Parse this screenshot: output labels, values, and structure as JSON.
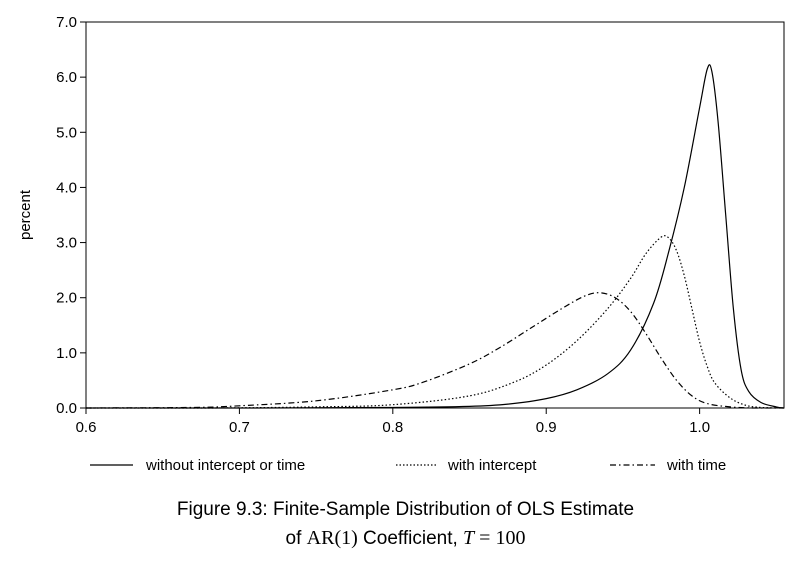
{
  "chart_data": {
    "type": "line",
    "ylabel": "percent",
    "xlim": [
      0.6,
      1.055
    ],
    "ylim": [
      0.0,
      7.0
    ],
    "x_ticks": [
      "0.6",
      "0.7",
      "0.8",
      "0.9",
      "1.0"
    ],
    "y_ticks": [
      "0.0",
      "1.0",
      "2.0",
      "3.0",
      "4.0",
      "5.0",
      "6.0",
      "7.0"
    ],
    "series": [
      {
        "name": "without intercept or time",
        "style": "solid",
        "points": [
          [
            0.6,
            0.0
          ],
          [
            0.7,
            0.0
          ],
          [
            0.8,
            0.01
          ],
          [
            0.85,
            0.03
          ],
          [
            0.875,
            0.07
          ],
          [
            0.9,
            0.17
          ],
          [
            0.92,
            0.33
          ],
          [
            0.94,
            0.62
          ],
          [
            0.955,
            1.05
          ],
          [
            0.97,
            1.9
          ],
          [
            0.98,
            2.85
          ],
          [
            0.99,
            4.0
          ],
          [
            1.0,
            5.45
          ],
          [
            1.005,
            6.15
          ],
          [
            1.008,
            6.1
          ],
          [
            1.012,
            5.2
          ],
          [
            1.017,
            3.5
          ],
          [
            1.022,
            1.8
          ],
          [
            1.027,
            0.7
          ],
          [
            1.032,
            0.3
          ],
          [
            1.04,
            0.1
          ],
          [
            1.05,
            0.02
          ],
          [
            1.055,
            0.0
          ]
        ]
      },
      {
        "name": "with intercept",
        "style": "dotted",
        "points": [
          [
            0.6,
            0.0
          ],
          [
            0.68,
            0.0
          ],
          [
            0.75,
            0.02
          ],
          [
            0.8,
            0.06
          ],
          [
            0.85,
            0.22
          ],
          [
            0.88,
            0.48
          ],
          [
            0.9,
            0.78
          ],
          [
            0.92,
            1.22
          ],
          [
            0.94,
            1.8
          ],
          [
            0.955,
            2.35
          ],
          [
            0.965,
            2.8
          ],
          [
            0.975,
            3.1
          ],
          [
            0.98,
            3.08
          ],
          [
            0.985,
            2.85
          ],
          [
            0.99,
            2.4
          ],
          [
            0.995,
            1.8
          ],
          [
            1.0,
            1.2
          ],
          [
            1.005,
            0.75
          ],
          [
            1.01,
            0.45
          ],
          [
            1.02,
            0.18
          ],
          [
            1.03,
            0.05
          ],
          [
            1.04,
            0.01
          ],
          [
            1.055,
            0.0
          ]
        ]
      },
      {
        "name": "with time",
        "style": "dashdot",
        "points": [
          [
            0.6,
            0.0
          ],
          [
            0.67,
            0.01
          ],
          [
            0.7,
            0.04
          ],
          [
            0.75,
            0.13
          ],
          [
            0.8,
            0.33
          ],
          [
            0.82,
            0.47
          ],
          [
            0.85,
            0.8
          ],
          [
            0.87,
            1.1
          ],
          [
            0.89,
            1.45
          ],
          [
            0.91,
            1.8
          ],
          [
            0.925,
            2.03
          ],
          [
            0.935,
            2.09
          ],
          [
            0.945,
            2.0
          ],
          [
            0.955,
            1.75
          ],
          [
            0.965,
            1.35
          ],
          [
            0.975,
            0.9
          ],
          [
            0.985,
            0.5
          ],
          [
            0.995,
            0.22
          ],
          [
            1.005,
            0.08
          ],
          [
            1.02,
            0.02
          ],
          [
            1.035,
            0.0
          ],
          [
            1.055,
            0.0
          ]
        ]
      }
    ]
  },
  "caption": {
    "line1": "Figure 9.3: Finite-Sample Distribution of OLS Estimate",
    "line2_prefix": "of ",
    "line2_ar": "AR(1)",
    "line2_mid": " Coefficient, ",
    "line2_T": "T",
    "line2_eq": " = 100"
  }
}
